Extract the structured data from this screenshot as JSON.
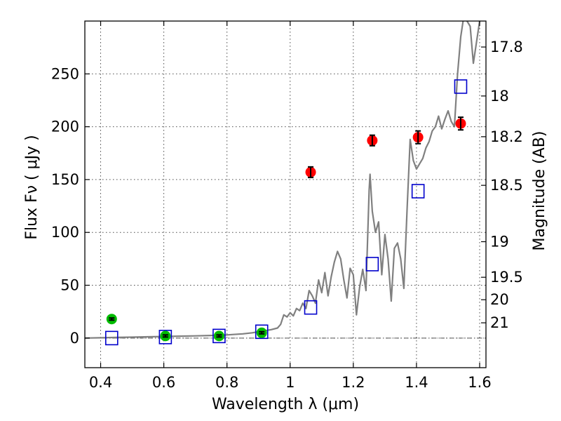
{
  "chart_data": {
    "type": "scatter",
    "xlabel": "Wavelength  λ (μm)",
    "ylabel": "Flux  Fν  ( μJy )",
    "y2label": "Magnitude (AB)",
    "xlim": [
      0.35,
      1.62
    ],
    "ylim": [
      -28,
      300
    ],
    "grid": true,
    "x_ticks": [
      0.4,
      0.6,
      0.8,
      1.0,
      1.2,
      1.4,
      1.6
    ],
    "x_tick_labels": [
      "0.4",
      "0.6",
      "0.8",
      "1",
      "1.2",
      "1.4",
      "1.6"
    ],
    "y_ticks": [
      0,
      50,
      100,
      150,
      200,
      250
    ],
    "y_tick_labels": [
      "0",
      "50",
      "100",
      "150",
      "200",
      "250"
    ],
    "mag_ticks": [
      17.8,
      18,
      18.2,
      18.5,
      19,
      19.5,
      20,
      21
    ],
    "mag_tick_labels": [
      "17.8",
      "18",
      "18.2",
      "18.5",
      "19",
      "19.5",
      "20",
      "21"
    ],
    "colors": {
      "spectrum": "#808080",
      "optical_points": "#00bb00",
      "nir_points": "#ff0000",
      "model_boxes": "#0000cc",
      "errorbar": "#000000"
    },
    "series": [
      {
        "kind": "line",
        "points": [
          [
            0.35,
            0
          ],
          [
            0.4,
            0.3
          ],
          [
            0.45,
            0.6
          ],
          [
            0.5,
            0.9
          ],
          [
            0.55,
            1.2
          ],
          [
            0.6,
            1.5
          ],
          [
            0.65,
            1.8
          ],
          [
            0.7,
            2.1
          ],
          [
            0.75,
            2.5
          ],
          [
            0.8,
            3.0
          ],
          [
            0.82,
            3.4
          ],
          [
            0.85,
            4.0
          ],
          [
            0.88,
            5.0
          ],
          [
            0.9,
            6.0
          ],
          [
            0.92,
            7.0
          ],
          [
            0.94,
            8.0
          ],
          [
            0.96,
            9.5
          ],
          [
            0.97,
            13
          ],
          [
            0.98,
            22
          ],
          [
            0.99,
            20
          ],
          [
            1.0,
            24
          ],
          [
            1.01,
            21
          ],
          [
            1.02,
            28
          ],
          [
            1.03,
            26
          ],
          [
            1.04,
            33
          ],
          [
            1.05,
            28
          ],
          [
            1.06,
            45
          ],
          [
            1.07,
            40
          ],
          [
            1.08,
            33
          ],
          [
            1.09,
            55
          ],
          [
            1.1,
            43
          ],
          [
            1.11,
            62
          ],
          [
            1.12,
            40
          ],
          [
            1.13,
            58
          ],
          [
            1.14,
            72
          ],
          [
            1.15,
            82
          ],
          [
            1.16,
            75
          ],
          [
            1.17,
            55
          ],
          [
            1.18,
            38
          ],
          [
            1.19,
            66
          ],
          [
            1.2,
            60
          ],
          [
            1.21,
            22
          ],
          [
            1.22,
            48
          ],
          [
            1.23,
            65
          ],
          [
            1.24,
            45
          ],
          [
            1.25,
            140
          ],
          [
            1.253,
            155
          ],
          [
            1.26,
            120
          ],
          [
            1.27,
            100
          ],
          [
            1.28,
            110
          ],
          [
            1.29,
            60
          ],
          [
            1.3,
            98
          ],
          [
            1.31,
            75
          ],
          [
            1.32,
            35
          ],
          [
            1.33,
            85
          ],
          [
            1.34,
            90
          ],
          [
            1.35,
            75
          ],
          [
            1.36,
            47
          ],
          [
            1.37,
            120
          ],
          [
            1.38,
            188
          ],
          [
            1.39,
            168
          ],
          [
            1.4,
            160
          ],
          [
            1.41,
            165
          ],
          [
            1.42,
            170
          ],
          [
            1.43,
            180
          ],
          [
            1.44,
            186
          ],
          [
            1.45,
            196
          ],
          [
            1.46,
            200
          ],
          [
            1.47,
            210
          ],
          [
            1.48,
            198
          ],
          [
            1.49,
            207
          ],
          [
            1.5,
            215
          ],
          [
            1.51,
            205
          ],
          [
            1.52,
            200
          ],
          [
            1.53,
            250
          ],
          [
            1.54,
            285
          ],
          [
            1.55,
            305
          ],
          [
            1.56,
            300
          ],
          [
            1.57,
            295
          ],
          [
            1.58,
            260
          ],
          [
            1.59,
            280
          ],
          [
            1.6,
            300
          ]
        ]
      },
      {
        "kind": "points",
        "points": [
          {
            "x": 0.435,
            "y": 18,
            "err": 1
          },
          {
            "x": 0.605,
            "y": 2,
            "err": 1
          },
          {
            "x": 0.775,
            "y": 2,
            "err": 1
          },
          {
            "x": 0.91,
            "y": 5,
            "err": 1
          }
        ]
      },
      {
        "kind": "points",
        "points": [
          {
            "x": 1.065,
            "y": 157,
            "err": 5
          },
          {
            "x": 1.26,
            "y": 187,
            "err": 5
          },
          {
            "x": 1.405,
            "y": 190,
            "err": 6
          },
          {
            "x": 1.54,
            "y": 203,
            "err": 6
          }
        ]
      },
      {
        "kind": "boxes",
        "points": [
          {
            "x": 0.435,
            "y": 0
          },
          {
            "x": 0.605,
            "y": 1
          },
          {
            "x": 0.775,
            "y": 2
          },
          {
            "x": 0.91,
            "y": 6
          },
          {
            "x": 1.065,
            "y": 29
          },
          {
            "x": 1.26,
            "y": 70
          },
          {
            "x": 1.405,
            "y": 139
          },
          {
            "x": 1.54,
            "y": 238
          }
        ]
      }
    ]
  }
}
